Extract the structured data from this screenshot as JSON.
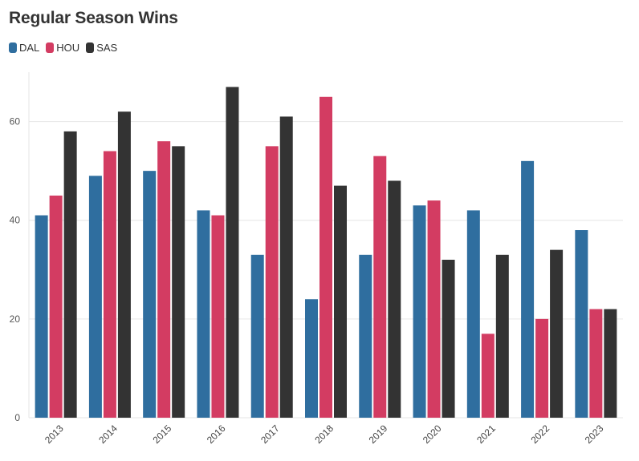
{
  "chart_data": {
    "type": "bar",
    "title": "Regular Season Wins",
    "xlabel": "",
    "ylabel": "",
    "categories": [
      "2013",
      "2014",
      "2015",
      "2016",
      "2017",
      "2018",
      "2019",
      "2020",
      "2021",
      "2022",
      "2023"
    ],
    "series": [
      {
        "name": "DAL",
        "color": "#2f6e9f",
        "values": [
          41,
          49,
          50,
          42,
          33,
          24,
          33,
          43,
          42,
          52,
          38
        ]
      },
      {
        "name": "HOU",
        "color": "#d33c62",
        "values": [
          45,
          54,
          56,
          41,
          55,
          65,
          53,
          44,
          17,
          20,
          22
        ]
      },
      {
        "name": "SAS",
        "color": "#333333",
        "values": [
          58,
          62,
          55,
          67,
          61,
          47,
          48,
          32,
          33,
          34,
          22
        ]
      }
    ],
    "ylim": [
      0,
      70
    ],
    "yticks": [
      0,
      20,
      40,
      60
    ],
    "grid": true,
    "legend_position": "top-left"
  }
}
